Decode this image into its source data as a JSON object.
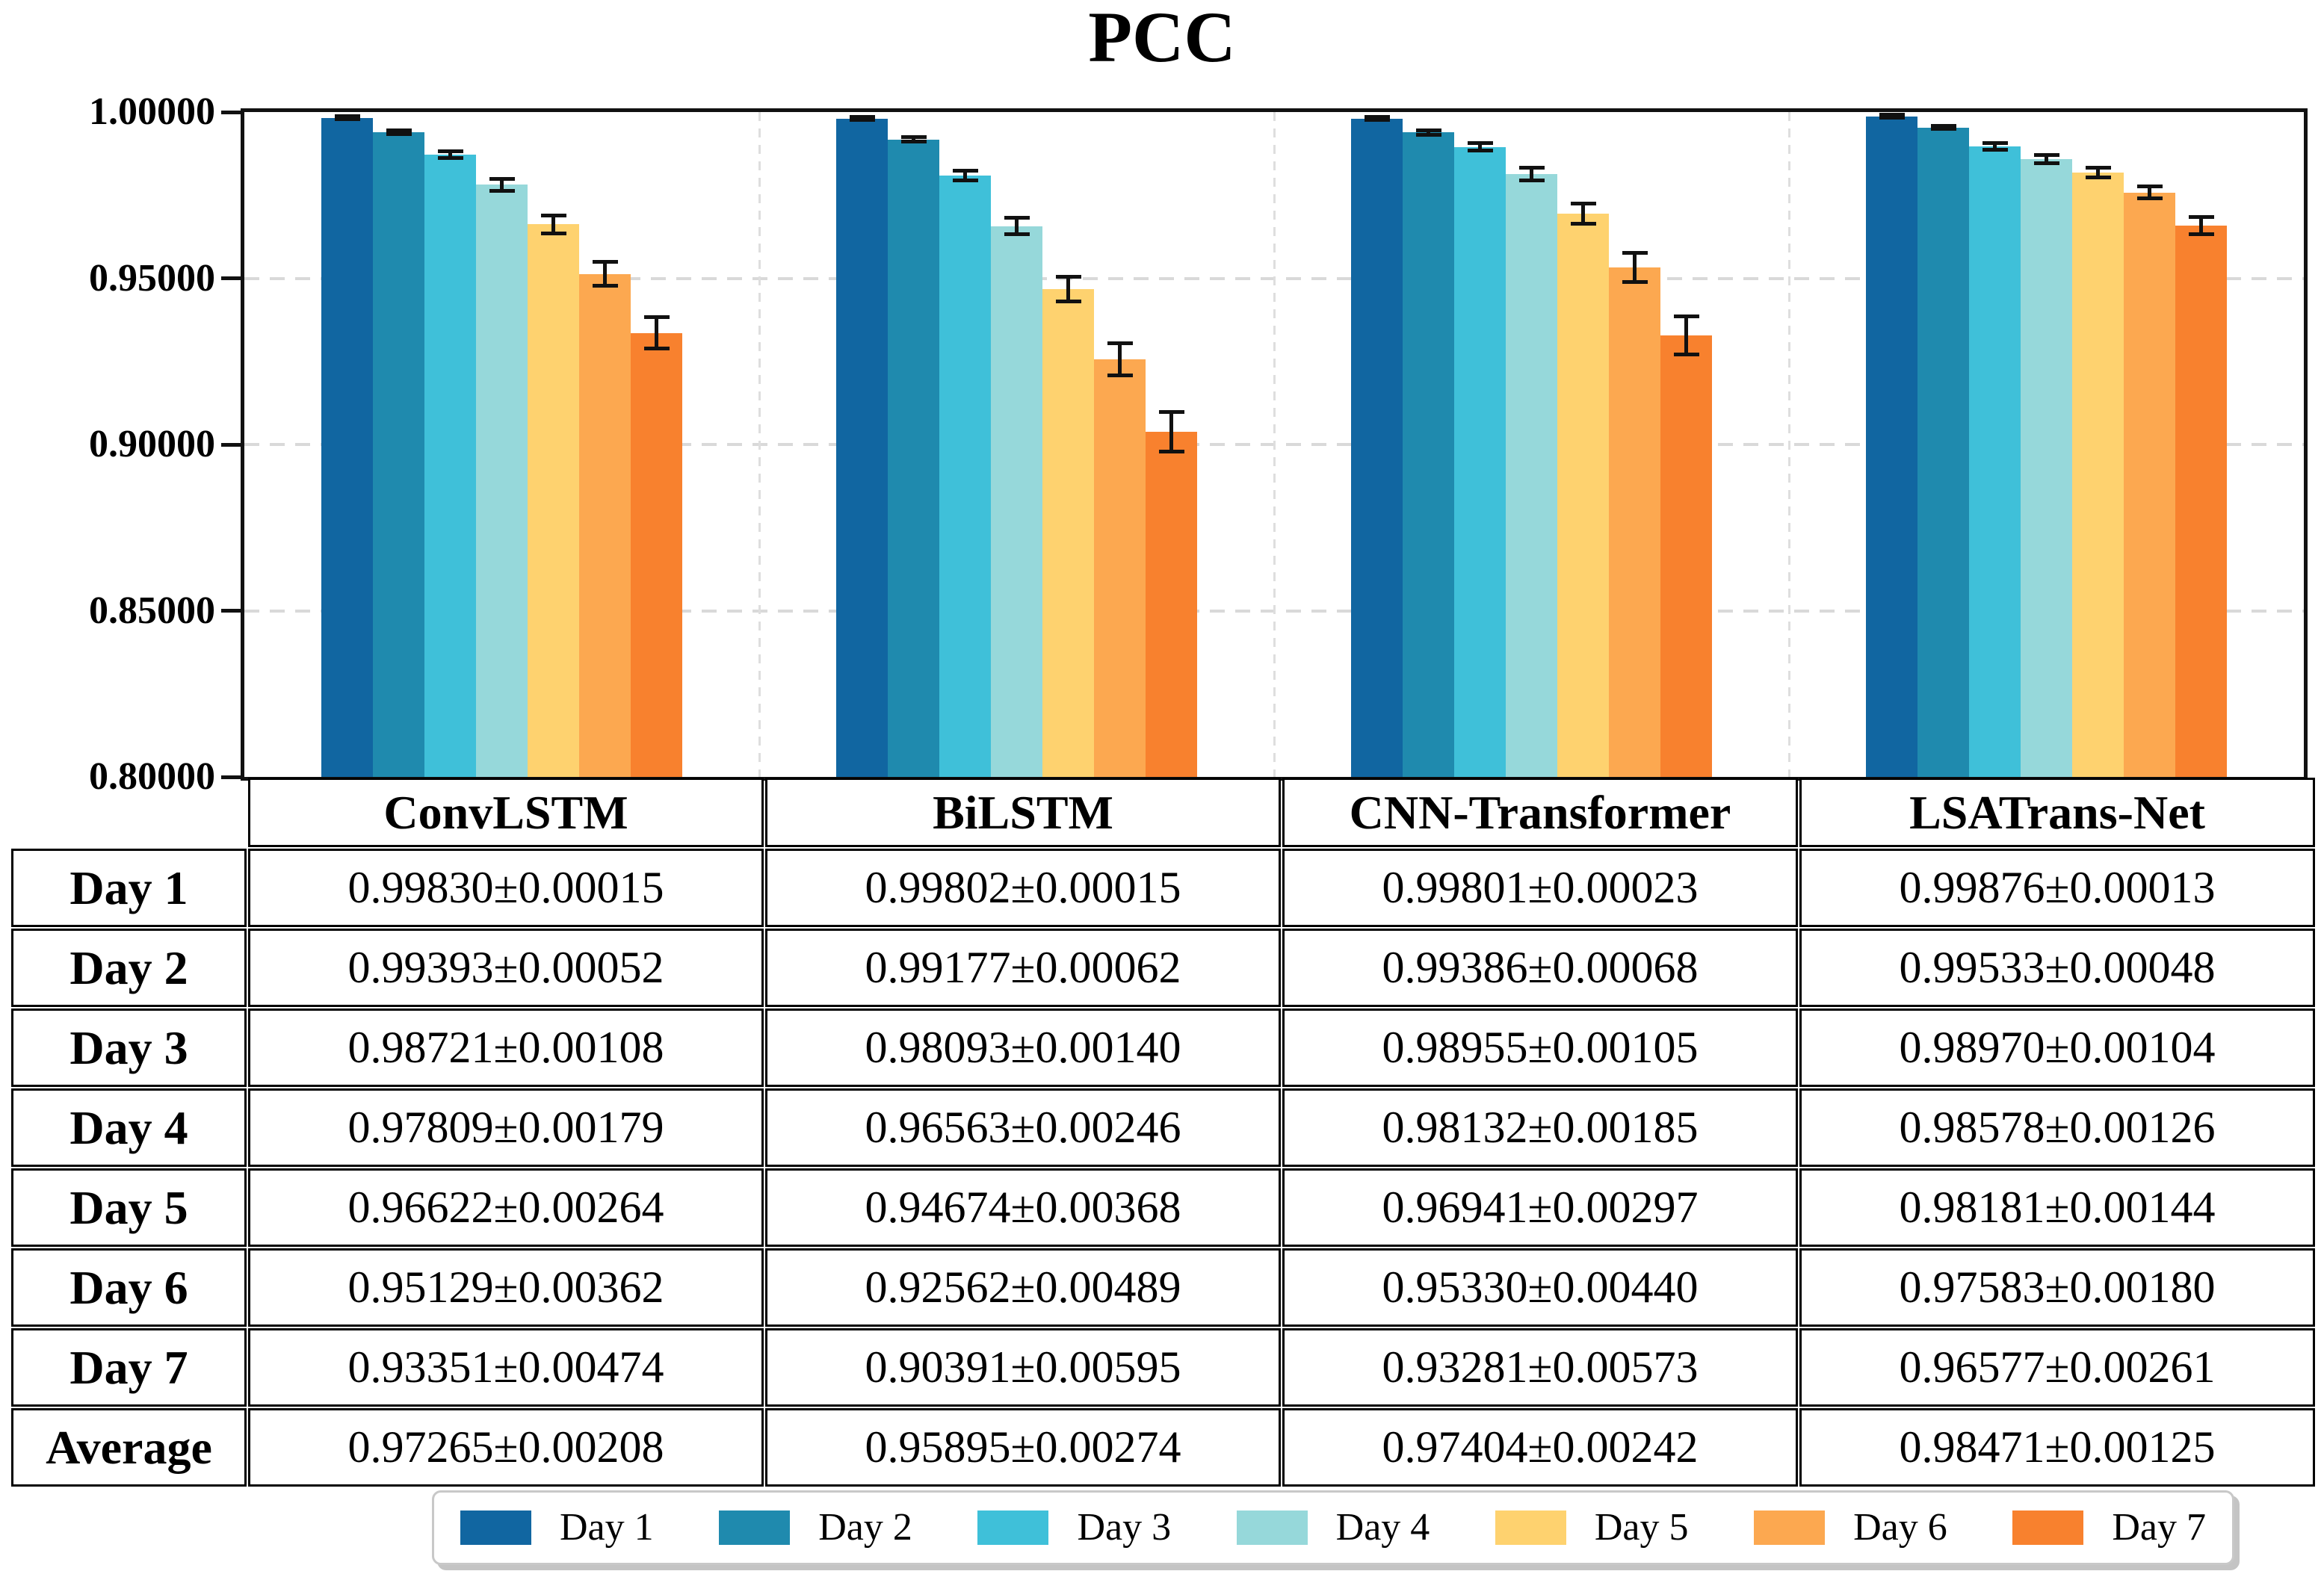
{
  "title": "PCC",
  "chart_data": {
    "type": "bar",
    "title": "PCC",
    "categories": [
      "ConvLSTM",
      "BiLSTM",
      "CNN-Transformer",
      "LSATrans-Net"
    ],
    "series": [
      {
        "name": "Day 1",
        "color": "#1166a1",
        "values": [
          0.9983,
          0.99802,
          0.99801,
          0.99876
        ],
        "errors": [
          0.00015,
          0.00015,
          0.00023,
          0.00013
        ]
      },
      {
        "name": "Day 2",
        "color": "#1f8aae",
        "values": [
          0.99393,
          0.99177,
          0.99386,
          0.99533
        ],
        "errors": [
          0.00052,
          0.00062,
          0.00068,
          0.00048
        ]
      },
      {
        "name": "Day 3",
        "color": "#3fc0d9",
        "values": [
          0.98721,
          0.98093,
          0.98955,
          0.9897
        ],
        "errors": [
          0.00108,
          0.0014,
          0.00105,
          0.00104
        ]
      },
      {
        "name": "Day 4",
        "color": "#96d8da",
        "values": [
          0.97809,
          0.96563,
          0.98132,
          0.98578
        ],
        "errors": [
          0.00179,
          0.00246,
          0.00185,
          0.00126
        ]
      },
      {
        "name": "Day 5",
        "color": "#fed26f",
        "values": [
          0.96622,
          0.94674,
          0.96941,
          0.98181
        ],
        "errors": [
          0.00264,
          0.00368,
          0.00297,
          0.00144
        ]
      },
      {
        "name": "Day 6",
        "color": "#fca850",
        "values": [
          0.95129,
          0.92562,
          0.9533,
          0.97583
        ],
        "errors": [
          0.00362,
          0.00489,
          0.0044,
          0.0018
        ]
      },
      {
        "name": "Day 7",
        "color": "#f8812e",
        "values": [
          0.93351,
          0.90391,
          0.93281,
          0.96577
        ],
        "errors": [
          0.00474,
          0.00595,
          0.00573,
          0.00261
        ]
      }
    ],
    "ylim": [
      0.8,
      1.0
    ],
    "yticks": [
      {
        "label": "1.00000",
        "value": 1.0
      },
      {
        "label": "0.95000",
        "value": 0.95
      },
      {
        "label": "0.90000",
        "value": 0.9
      },
      {
        "label": "0.85000",
        "value": 0.85
      },
      {
        "label": "0.80000",
        "value": 0.8
      }
    ],
    "grid": {
      "horizontal_dashed_at": [
        0.95,
        0.9,
        0.85
      ],
      "vertical_dashed_between_categories": true
    },
    "legend_position": "bottom",
    "error_bar_color": "#111111"
  },
  "table": {
    "columns": [
      "ConvLSTM",
      "BiLSTM",
      "CNN-Transformer",
      "LSATrans-Net"
    ],
    "row_labels": [
      "Day 1",
      "Day 2",
      "Day 3",
      "Day 4",
      "Day 5",
      "Day 6",
      "Day 7",
      "Average"
    ],
    "cells": [
      [
        "0.99830±0.00015",
        "0.99802±0.00015",
        "0.99801±0.00023",
        "0.99876±0.00013"
      ],
      [
        "0.99393±0.00052",
        "0.99177±0.00062",
        "0.99386±0.00068",
        "0.99533±0.00048"
      ],
      [
        "0.98721±0.00108",
        "0.98093±0.00140",
        "0.98955±0.00105",
        "0.98970±0.00104"
      ],
      [
        "0.97809±0.00179",
        "0.96563±0.00246",
        "0.98132±0.00185",
        "0.98578±0.00126"
      ],
      [
        "0.96622±0.00264",
        "0.94674±0.00368",
        "0.96941±0.00297",
        "0.98181±0.00144"
      ],
      [
        "0.95129±0.00362",
        "0.92562±0.00489",
        "0.95330±0.00440",
        "0.97583±0.00180"
      ],
      [
        "0.93351±0.00474",
        "0.90391±0.00595",
        "0.93281±0.00573",
        "0.96577±0.00261"
      ],
      [
        "0.97265±0.00208",
        "0.95895±0.00274",
        "0.97404±0.00242",
        "0.98471±0.00125"
      ]
    ]
  },
  "legend": [
    {
      "label": "Day 1",
      "color": "#1166a1"
    },
    {
      "label": "Day 2",
      "color": "#1f8aae"
    },
    {
      "label": "Day 3",
      "color": "#3fc0d9"
    },
    {
      "label": "Day 4",
      "color": "#96d8da"
    },
    {
      "label": "Day 5",
      "color": "#fed26f"
    },
    {
      "label": "Day 6",
      "color": "#fca850"
    },
    {
      "label": "Day 7",
      "color": "#f8812e"
    }
  ]
}
